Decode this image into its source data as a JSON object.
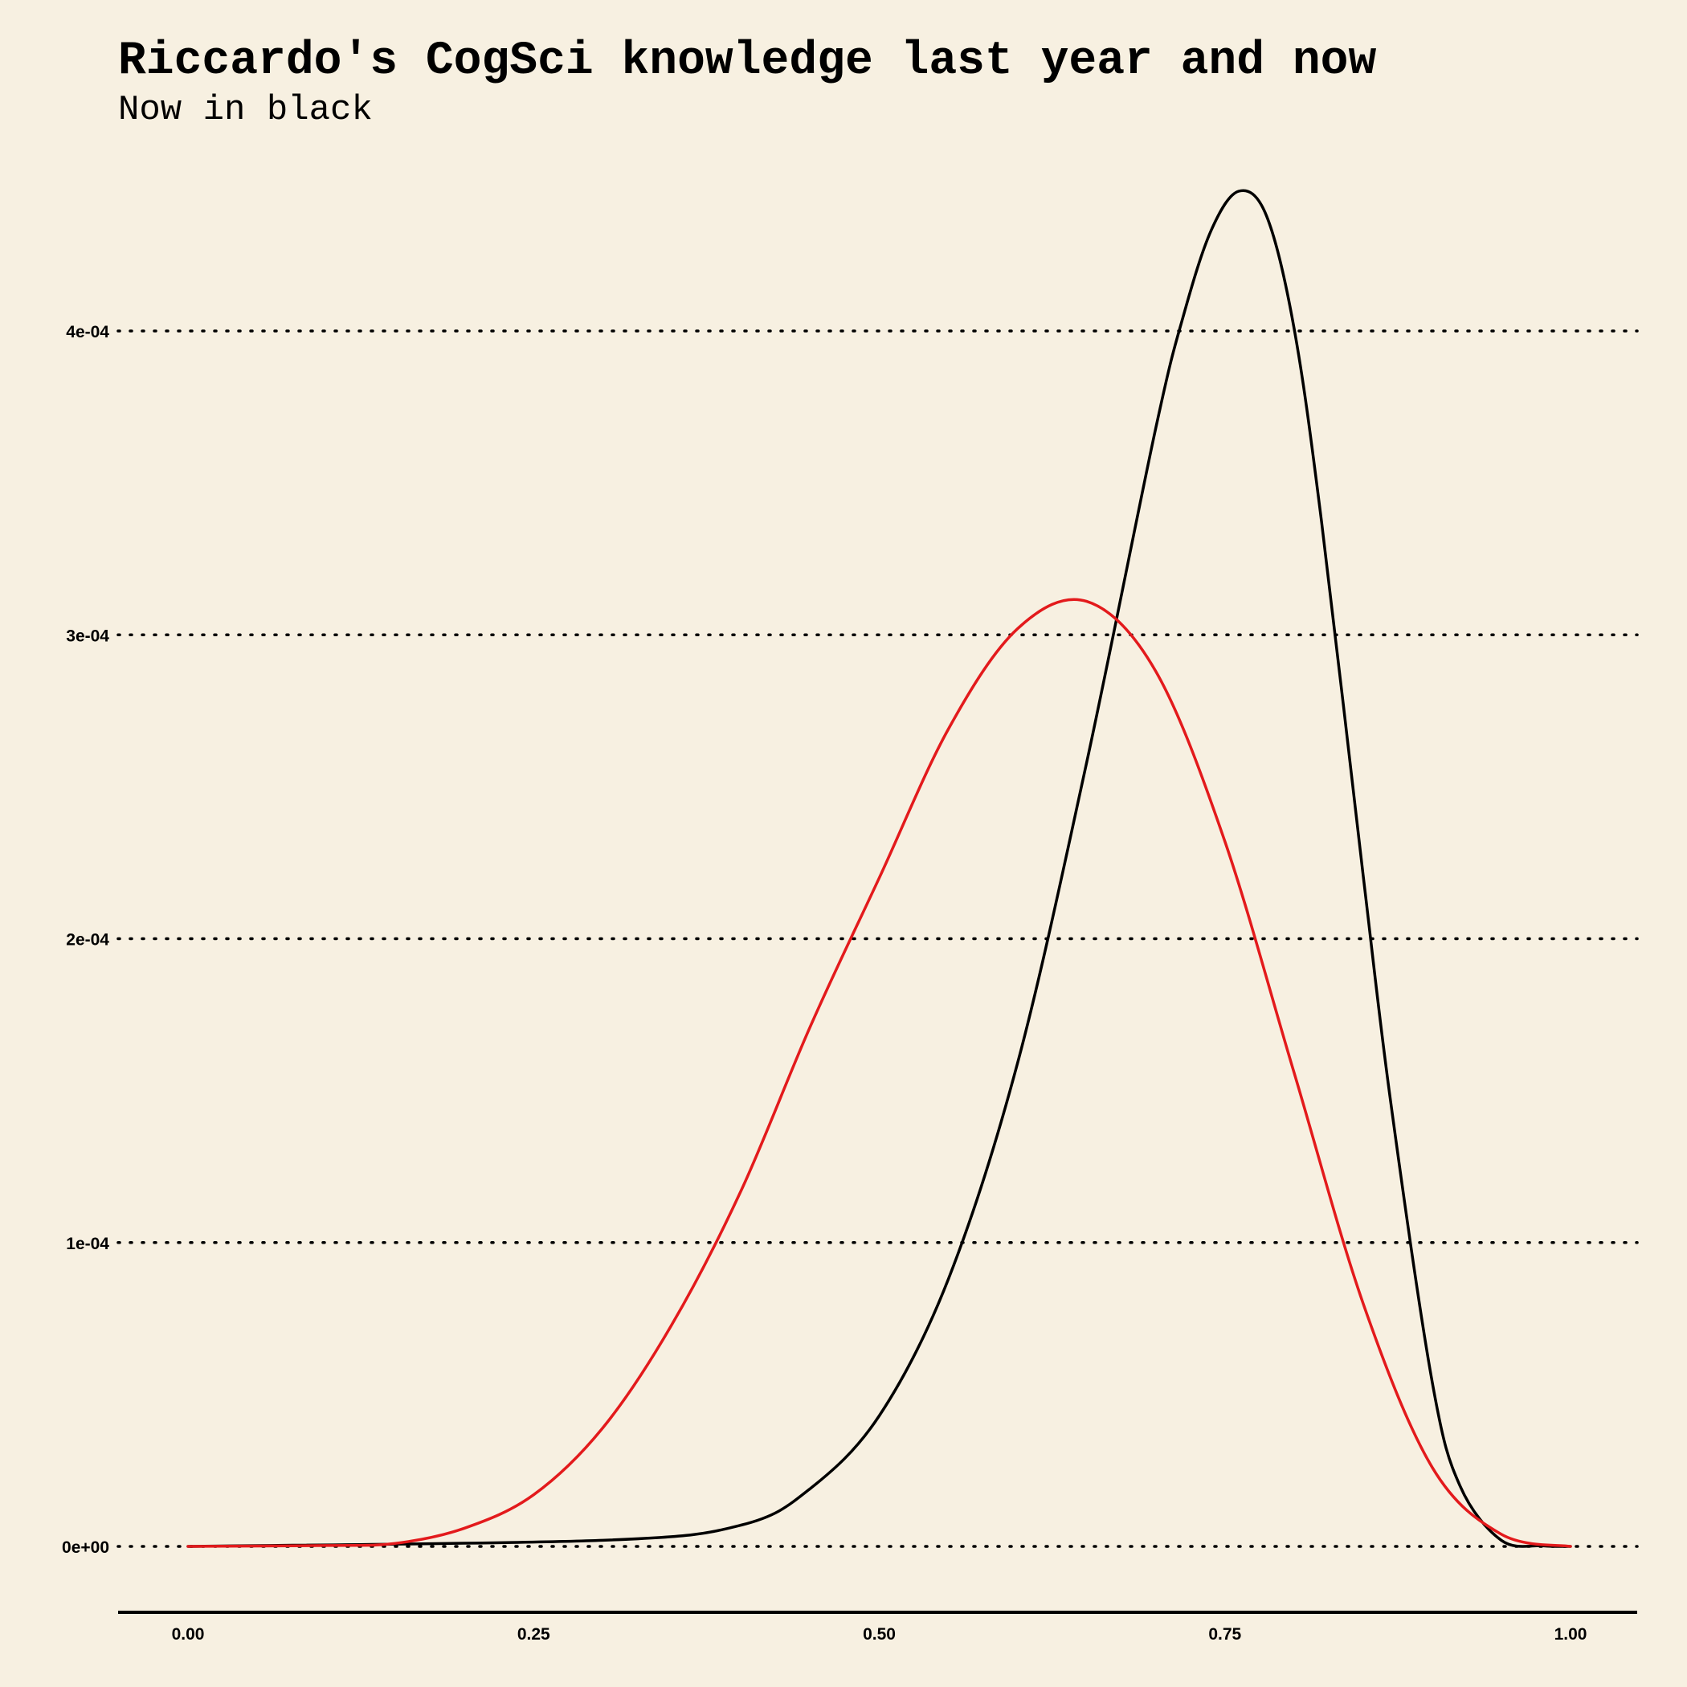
{
  "chart_data": {
    "type": "line",
    "title": "Riccardo's CogSci knowledge last year and now",
    "subtitle": "Now in black",
    "xlabel": "",
    "ylabel": "",
    "xlim": [
      0,
      1
    ],
    "ylim": [
      0,
      0.00045
    ],
    "x_ticks": [
      0,
      0.25,
      0.5,
      0.75,
      1
    ],
    "x_tick_labels": [
      "0.00",
      "0.25",
      "0.50",
      "0.75",
      "1.00"
    ],
    "y_ticks": [
      0,
      0.0001,
      0.0002,
      0.0003,
      0.0004
    ],
    "y_tick_labels": [
      "0e+00",
      "1e-04",
      "2e-04",
      "3e-04",
      "4e-04"
    ],
    "grid": "horizontal dotted",
    "legend": "none",
    "background_color": "#f7f0e1",
    "series": [
      {
        "color": "#000000",
        "x": [
          0.0,
          0.3,
          0.4,
          0.45,
          0.5,
          0.55,
          0.6,
          0.65,
          0.7,
          0.72,
          0.74,
          0.76,
          0.78,
          0.8,
          0.82,
          0.85,
          0.87,
          0.9,
          0.92,
          0.95,
          0.98,
          1.0
        ],
        "y": [
          0.0,
          2e-06,
          7e-06,
          1.9e-05,
          4.3e-05,
          8.8e-05,
          0.000159,
          0.000258,
          0.000368,
          0.000405,
          0.000433,
          0.000446,
          0.000438,
          0.000401,
          0.000337,
          0.000221,
          0.000146,
          5.4e-05,
          2e-05,
          2e-06,
          2e-07,
          0.0
        ]
      },
      {
        "color": "#e31a1c",
        "x": [
          0.0,
          0.1,
          0.15,
          0.2,
          0.25,
          0.3,
          0.35,
          0.4,
          0.45,
          0.5,
          0.55,
          0.6,
          0.65,
          0.7,
          0.75,
          0.8,
          0.85,
          0.9,
          0.95,
          1.0
        ],
        "y": [
          0.0,
          3e-07,
          1e-06,
          6e-06,
          1.7e-05,
          3.9e-05,
          7.3e-05,
          0.000117,
          0.000171,
          0.00022,
          0.000269,
          0.000302,
          0.000311,
          0.000288,
          0.000232,
          0.000156,
          8e-05,
          2.6e-05,
          4e-06,
          0.0
        ]
      }
    ]
  }
}
